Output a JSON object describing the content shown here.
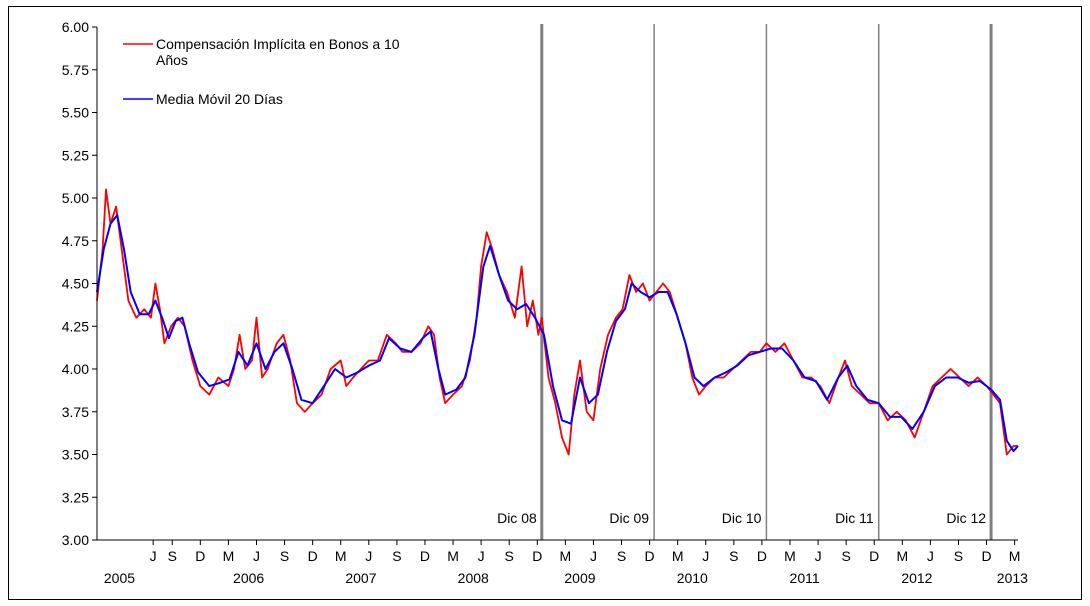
{
  "chart_data": {
    "type": "line",
    "ylim": [
      3.0,
      6.0
    ],
    "y_ticks": [
      "3.00",
      "3.25",
      "3.50",
      "3.75",
      "4.00",
      "4.25",
      "4.50",
      "4.75",
      "5.00",
      "5.25",
      "5.50",
      "5.75",
      "6.00"
    ],
    "y_tick_values": [
      3.0,
      3.25,
      3.5,
      3.75,
      4.0,
      4.25,
      4.5,
      4.75,
      5.0,
      5.25,
      5.5,
      5.75,
      6.0
    ],
    "xlim": [
      2005.0,
      2013.2
    ],
    "x_month_ticks": [
      {
        "label": "J",
        "x": 2005.5
      },
      {
        "label": "S",
        "x": 2005.67
      },
      {
        "label": "D",
        "x": 2005.92
      },
      {
        "label": "M",
        "x": 2006.17
      },
      {
        "label": "J",
        "x": 2006.42
      },
      {
        "label": "S",
        "x": 2006.67
      },
      {
        "label": "D",
        "x": 2006.92
      },
      {
        "label": "M",
        "x": 2007.17
      },
      {
        "label": "J",
        "x": 2007.42
      },
      {
        "label": "S",
        "x": 2007.67
      },
      {
        "label": "D",
        "x": 2007.92
      },
      {
        "label": "M",
        "x": 2008.17
      },
      {
        "label": "J",
        "x": 2008.42
      },
      {
        "label": "S",
        "x": 2008.67
      },
      {
        "label": "D",
        "x": 2008.92
      },
      {
        "label": "M",
        "x": 2009.17
      },
      {
        "label": "J",
        "x": 2009.42
      },
      {
        "label": "S",
        "x": 2009.67
      },
      {
        "label": "D",
        "x": 2009.92
      },
      {
        "label": "M",
        "x": 2010.17
      },
      {
        "label": "J",
        "x": 2010.42
      },
      {
        "label": "S",
        "x": 2010.67
      },
      {
        "label": "D",
        "x": 2010.92
      },
      {
        "label": "M",
        "x": 2011.17
      },
      {
        "label": "J",
        "x": 2011.42
      },
      {
        "label": "S",
        "x": 2011.67
      },
      {
        "label": "D",
        "x": 2011.92
      },
      {
        "label": "M",
        "x": 2012.17
      },
      {
        "label": "J",
        "x": 2012.42
      },
      {
        "label": "S",
        "x": 2012.67
      },
      {
        "label": "D",
        "x": 2012.92
      },
      {
        "label": "M",
        "x": 2013.17
      }
    ],
    "x_year_labels": [
      {
        "label": "2005",
        "x": 2005.2
      },
      {
        "label": "2006",
        "x": 2006.35
      },
      {
        "label": "2007",
        "x": 2007.35
      },
      {
        "label": "2008",
        "x": 2008.35
      },
      {
        "label": "2009",
        "x": 2009.3
      },
      {
        "label": "2010",
        "x": 2010.3
      },
      {
        "label": "2011",
        "x": 2011.3
      },
      {
        "label": "2012",
        "x": 2012.3
      },
      {
        "label": "2013",
        "x": 2013.15
      }
    ],
    "vertical_lines": [
      {
        "label": "Dic 08",
        "x": 2008.96,
        "bold": true
      },
      {
        "label": "Dic 09",
        "x": 2009.96,
        "bold": false
      },
      {
        "label": "Dic 10",
        "x": 2010.96,
        "bold": false
      },
      {
        "label": "Dic 11",
        "x": 2011.96,
        "bold": false
      },
      {
        "label": "Dic 12",
        "x": 2012.96,
        "bold": true
      }
    ],
    "series": [
      {
        "name": "Compensación Implícita en Bonos a 10 Años",
        "color": "#ff0000",
        "points": [
          [
            2005.0,
            4.4
          ],
          [
            2005.05,
            4.7
          ],
          [
            2005.08,
            5.05
          ],
          [
            2005.12,
            4.85
          ],
          [
            2005.17,
            4.95
          ],
          [
            2005.22,
            4.7
          ],
          [
            2005.28,
            4.4
          ],
          [
            2005.35,
            4.3
          ],
          [
            2005.42,
            4.35
          ],
          [
            2005.48,
            4.3
          ],
          [
            2005.52,
            4.5
          ],
          [
            2005.56,
            4.35
          ],
          [
            2005.6,
            4.15
          ],
          [
            2005.66,
            4.25
          ],
          [
            2005.72,
            4.3
          ],
          [
            2005.78,
            4.25
          ],
          [
            2005.85,
            4.05
          ],
          [
            2005.92,
            3.9
          ],
          [
            2006.0,
            3.85
          ],
          [
            2006.08,
            3.95
          ],
          [
            2006.17,
            3.9
          ],
          [
            2006.22,
            4.0
          ],
          [
            2006.27,
            4.2
          ],
          [
            2006.32,
            4.0
          ],
          [
            2006.38,
            4.05
          ],
          [
            2006.42,
            4.3
          ],
          [
            2006.47,
            3.95
          ],
          [
            2006.52,
            4.0
          ],
          [
            2006.6,
            4.15
          ],
          [
            2006.66,
            4.2
          ],
          [
            2006.72,
            4.05
          ],
          [
            2006.78,
            3.8
          ],
          [
            2006.85,
            3.75
          ],
          [
            2006.92,
            3.8
          ],
          [
            2007.0,
            3.85
          ],
          [
            2007.08,
            4.0
          ],
          [
            2007.17,
            4.05
          ],
          [
            2007.22,
            3.9
          ],
          [
            2007.28,
            3.95
          ],
          [
            2007.35,
            4.0
          ],
          [
            2007.42,
            4.05
          ],
          [
            2007.5,
            4.05
          ],
          [
            2007.58,
            4.2
          ],
          [
            2007.66,
            4.15
          ],
          [
            2007.72,
            4.1
          ],
          [
            2007.8,
            4.1
          ],
          [
            2007.88,
            4.15
          ],
          [
            2007.95,
            4.25
          ],
          [
            2008.0,
            4.2
          ],
          [
            2008.05,
            3.95
          ],
          [
            2008.1,
            3.8
          ],
          [
            2008.17,
            3.85
          ],
          [
            2008.25,
            3.9
          ],
          [
            2008.32,
            4.05
          ],
          [
            2008.38,
            4.3
          ],
          [
            2008.42,
            4.6
          ],
          [
            2008.47,
            4.8
          ],
          [
            2008.52,
            4.7
          ],
          [
            2008.58,
            4.55
          ],
          [
            2008.65,
            4.45
          ],
          [
            2008.72,
            4.3
          ],
          [
            2008.78,
            4.6
          ],
          [
            2008.83,
            4.25
          ],
          [
            2008.88,
            4.4
          ],
          [
            2008.93,
            4.2
          ],
          [
            2008.96,
            4.3
          ],
          [
            2009.02,
            3.95
          ],
          [
            2009.08,
            3.8
          ],
          [
            2009.14,
            3.6
          ],
          [
            2009.2,
            3.5
          ],
          [
            2009.25,
            3.85
          ],
          [
            2009.3,
            4.05
          ],
          [
            2009.36,
            3.75
          ],
          [
            2009.42,
            3.7
          ],
          [
            2009.48,
            4.0
          ],
          [
            2009.55,
            4.2
          ],
          [
            2009.62,
            4.3
          ],
          [
            2009.68,
            4.35
          ],
          [
            2009.74,
            4.55
          ],
          [
            2009.8,
            4.45
          ],
          [
            2009.86,
            4.5
          ],
          [
            2009.92,
            4.4
          ],
          [
            2009.98,
            4.45
          ],
          [
            2010.04,
            4.5
          ],
          [
            2010.1,
            4.45
          ],
          [
            2010.17,
            4.3
          ],
          [
            2010.24,
            4.15
          ],
          [
            2010.3,
            3.95
          ],
          [
            2010.36,
            3.85
          ],
          [
            2010.42,
            3.9
          ],
          [
            2010.5,
            3.95
          ],
          [
            2010.58,
            3.95
          ],
          [
            2010.66,
            4.0
          ],
          [
            2010.74,
            4.05
          ],
          [
            2010.82,
            4.1
          ],
          [
            2010.9,
            4.1
          ],
          [
            2010.96,
            4.15
          ],
          [
            2011.04,
            4.1
          ],
          [
            2011.12,
            4.15
          ],
          [
            2011.2,
            4.05
          ],
          [
            2011.28,
            3.95
          ],
          [
            2011.36,
            3.95
          ],
          [
            2011.44,
            3.9
          ],
          [
            2011.52,
            3.8
          ],
          [
            2011.6,
            3.95
          ],
          [
            2011.66,
            4.05
          ],
          [
            2011.72,
            3.9
          ],
          [
            2011.8,
            3.85
          ],
          [
            2011.88,
            3.8
          ],
          [
            2011.96,
            3.8
          ],
          [
            2012.04,
            3.7
          ],
          [
            2012.12,
            3.75
          ],
          [
            2012.2,
            3.7
          ],
          [
            2012.28,
            3.6
          ],
          [
            2012.36,
            3.75
          ],
          [
            2012.44,
            3.9
          ],
          [
            2012.52,
            3.95
          ],
          [
            2012.6,
            4.0
          ],
          [
            2012.68,
            3.95
          ],
          [
            2012.76,
            3.9
          ],
          [
            2012.84,
            3.95
          ],
          [
            2012.92,
            3.9
          ],
          [
            2012.98,
            3.85
          ],
          [
            2013.04,
            3.8
          ],
          [
            2013.1,
            3.5
          ],
          [
            2013.16,
            3.55
          ],
          [
            2013.2,
            3.55
          ]
        ]
      },
      {
        "name": "Media Móvil 20 Días",
        "color": "#0000ff",
        "points": [
          [
            2005.0,
            4.45
          ],
          [
            2005.06,
            4.7
          ],
          [
            2005.12,
            4.85
          ],
          [
            2005.18,
            4.9
          ],
          [
            2005.24,
            4.7
          ],
          [
            2005.3,
            4.45
          ],
          [
            2005.38,
            4.32
          ],
          [
            2005.46,
            4.32
          ],
          [
            2005.52,
            4.4
          ],
          [
            2005.58,
            4.3
          ],
          [
            2005.64,
            4.18
          ],
          [
            2005.7,
            4.28
          ],
          [
            2005.76,
            4.3
          ],
          [
            2005.82,
            4.15
          ],
          [
            2005.9,
            3.98
          ],
          [
            2006.0,
            3.9
          ],
          [
            2006.1,
            3.92
          ],
          [
            2006.18,
            3.94
          ],
          [
            2006.26,
            4.1
          ],
          [
            2006.34,
            4.02
          ],
          [
            2006.42,
            4.15
          ],
          [
            2006.5,
            4.0
          ],
          [
            2006.58,
            4.1
          ],
          [
            2006.66,
            4.15
          ],
          [
            2006.74,
            4.0
          ],
          [
            2006.82,
            3.82
          ],
          [
            2006.92,
            3.8
          ],
          [
            2007.02,
            3.9
          ],
          [
            2007.12,
            4.0
          ],
          [
            2007.22,
            3.95
          ],
          [
            2007.32,
            3.98
          ],
          [
            2007.42,
            4.02
          ],
          [
            2007.52,
            4.05
          ],
          [
            2007.6,
            4.18
          ],
          [
            2007.7,
            4.12
          ],
          [
            2007.8,
            4.1
          ],
          [
            2007.9,
            4.18
          ],
          [
            2007.97,
            4.22
          ],
          [
            2008.04,
            4.0
          ],
          [
            2008.1,
            3.85
          ],
          [
            2008.2,
            3.88
          ],
          [
            2008.28,
            3.95
          ],
          [
            2008.36,
            4.2
          ],
          [
            2008.44,
            4.6
          ],
          [
            2008.5,
            4.72
          ],
          [
            2008.58,
            4.55
          ],
          [
            2008.66,
            4.4
          ],
          [
            2008.74,
            4.35
          ],
          [
            2008.82,
            4.38
          ],
          [
            2008.9,
            4.3
          ],
          [
            2008.98,
            4.2
          ],
          [
            2009.06,
            3.9
          ],
          [
            2009.14,
            3.7
          ],
          [
            2009.22,
            3.68
          ],
          [
            2009.3,
            3.95
          ],
          [
            2009.38,
            3.8
          ],
          [
            2009.46,
            3.85
          ],
          [
            2009.54,
            4.1
          ],
          [
            2009.62,
            4.28
          ],
          [
            2009.7,
            4.35
          ],
          [
            2009.76,
            4.5
          ],
          [
            2009.84,
            4.45
          ],
          [
            2009.92,
            4.42
          ],
          [
            2010.0,
            4.45
          ],
          [
            2010.08,
            4.45
          ],
          [
            2010.16,
            4.32
          ],
          [
            2010.24,
            4.15
          ],
          [
            2010.32,
            3.95
          ],
          [
            2010.4,
            3.9
          ],
          [
            2010.5,
            3.95
          ],
          [
            2010.6,
            3.98
          ],
          [
            2010.7,
            4.02
          ],
          [
            2010.8,
            4.08
          ],
          [
            2010.9,
            4.1
          ],
          [
            2011.0,
            4.12
          ],
          [
            2011.1,
            4.12
          ],
          [
            2011.2,
            4.05
          ],
          [
            2011.3,
            3.95
          ],
          [
            2011.4,
            3.93
          ],
          [
            2011.5,
            3.82
          ],
          [
            2011.6,
            3.95
          ],
          [
            2011.68,
            4.02
          ],
          [
            2011.76,
            3.9
          ],
          [
            2011.86,
            3.82
          ],
          [
            2011.96,
            3.8
          ],
          [
            2012.06,
            3.72
          ],
          [
            2012.16,
            3.72
          ],
          [
            2012.26,
            3.65
          ],
          [
            2012.36,
            3.75
          ],
          [
            2012.46,
            3.9
          ],
          [
            2012.56,
            3.95
          ],
          [
            2012.66,
            3.95
          ],
          [
            2012.76,
            3.92
          ],
          [
            2012.86,
            3.93
          ],
          [
            2012.96,
            3.88
          ],
          [
            2013.04,
            3.82
          ],
          [
            2013.1,
            3.58
          ],
          [
            2013.16,
            3.52
          ],
          [
            2013.2,
            3.55
          ]
        ]
      }
    ]
  }
}
